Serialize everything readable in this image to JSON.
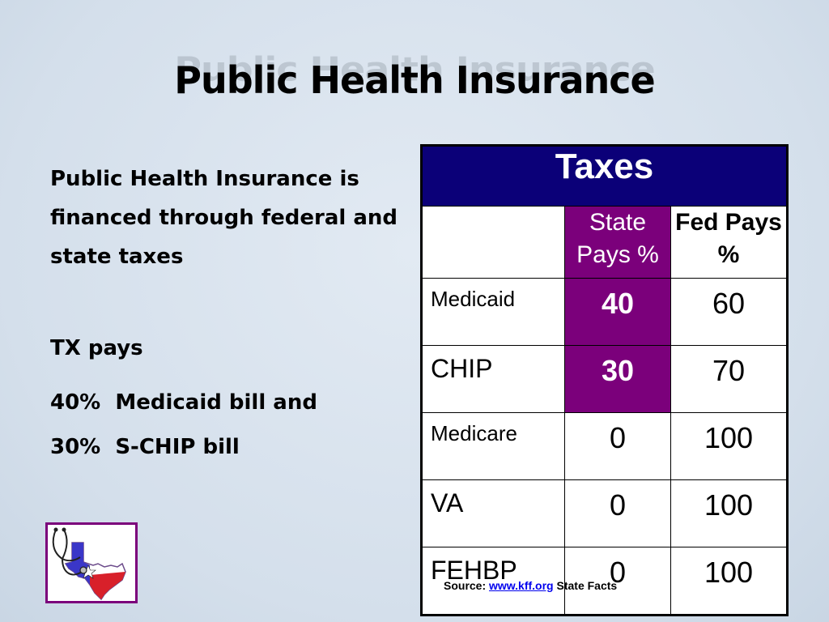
{
  "slide": {
    "title": "Public Health Insurance"
  },
  "left": {
    "paragraph1": "Public Health Insurance is financed through federal and state taxes",
    "tx_pays": "TX pays",
    "line_medicaid": "40%  Medicaid bill and",
    "line_schip": "30%  S-CHIP bill"
  },
  "table": {
    "header": "Taxes",
    "col_state": "State Pays %",
    "col_fed": "Fed Pays %",
    "rows": [
      {
        "name": "Medicaid",
        "state": "40",
        "fed": "60"
      },
      {
        "name": "CHIP",
        "state": "30",
        "fed": "70"
      },
      {
        "name": "Medicare",
        "state": "0",
        "fed": "100"
      },
      {
        "name": "VA",
        "state": "0",
        "fed": "100"
      },
      {
        "name": "FEHBP",
        "state": "0",
        "fed": "100"
      }
    ],
    "highlight_color": "#7b007b",
    "header_color": "#0b0078"
  },
  "source": {
    "prefix": "Source:",
    "link": "www.kff.org",
    "suffix": "State Facts"
  },
  "logo": {
    "icon": "texas-stethoscope-logo"
  }
}
